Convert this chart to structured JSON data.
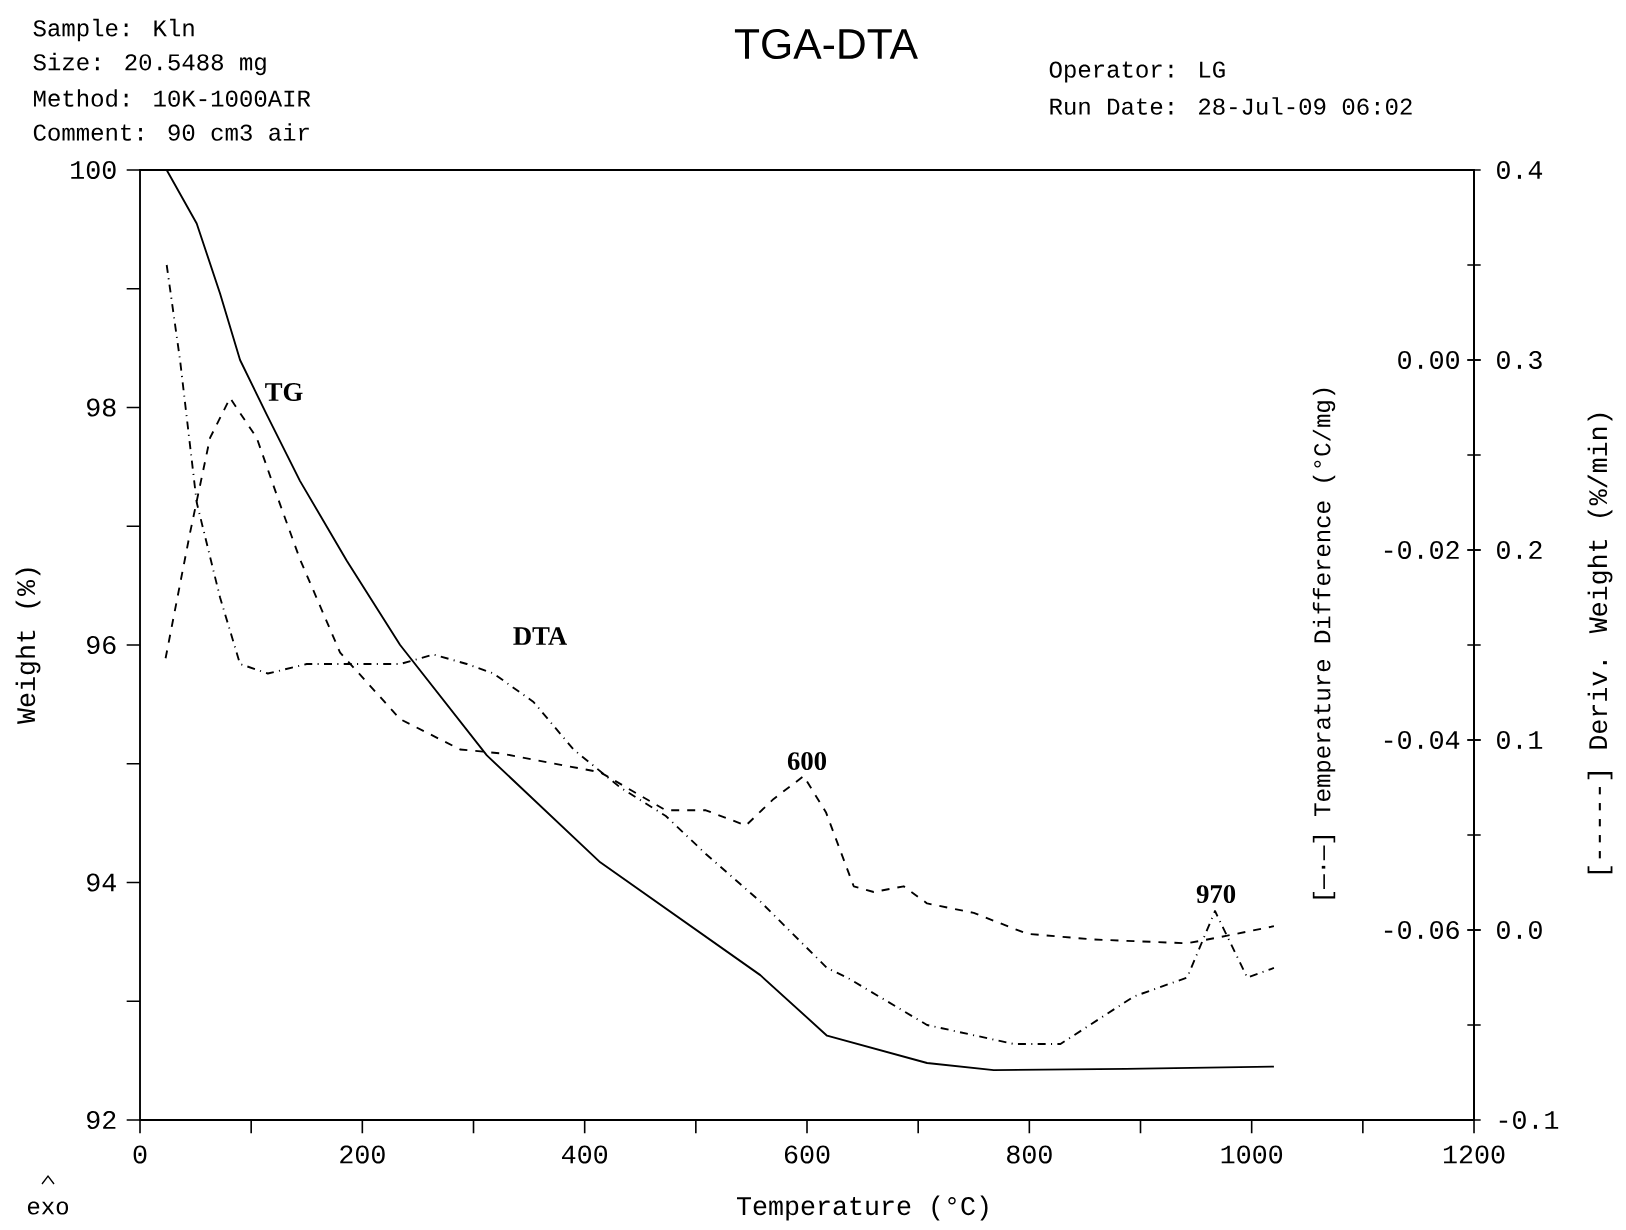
{
  "chart_data": {
    "type": "line",
    "title": "TGA-DTA",
    "xlabel": "Temperature (°C)",
    "ylabel": "Weight (%)",
    "y2label": "[-----] Deriv. Weight (%/min)",
    "y3label": "[—·—] Temperature Difference (°C/mg)",
    "annotations": [
      "Sample: Kln",
      "Size:    20.5488 mg",
      "Method: 10K-1000AIR",
      "Comment: 90 cm3 air",
      "Operator: LG",
      "Run Date: 28-Jul-09 06:02",
      "exo",
      "TG",
      "DTA",
      {
        "text": "600",
        "x": 600,
        "y": 94.92
      },
      {
        "text": "970",
        "x": 968,
        "y": 93.8
      }
    ],
    "xlim": [
      0,
      1200
    ],
    "xticks": [
      0,
      {
        "value": 100,
        "label": null
      },
      200,
      {
        "value": 300,
        "label": null
      },
      400,
      {
        "value": 500,
        "label": null
      },
      600,
      {
        "value": 700,
        "label": null
      },
      800,
      {
        "value": 900,
        "label": null
      },
      1000,
      {
        "value": 1100,
        "label": null
      },
      1200
    ],
    "ylim": [
      92,
      100
    ],
    "yticks": [
      92,
      {
        "value": 93,
        "label": null
      },
      94,
      {
        "value": 95,
        "label": null
      },
      96,
      {
        "value": 97,
        "label": null
      },
      98,
      {
        "value": 99,
        "label": null
      },
      100
    ],
    "y2lim": [
      -0.1,
      0.4
    ],
    "y2ticks": [
      {
        "value": -0.1,
        "label": "-0.1"
      },
      {
        "value": -0.05,
        "label": null
      },
      {
        "value": 0.0,
        "label": "0.0"
      },
      {
        "value": 0.05,
        "label": null
      },
      {
        "value": 0.1,
        "label": "0.1"
      },
      {
        "value": 0.15,
        "label": null
      },
      {
        "value": 0.2,
        "label": "0.2"
      },
      {
        "value": 0.25,
        "label": null
      },
      {
        "value": 0.3,
        "label": "0.3"
      },
      {
        "value": 0.35,
        "label": null
      },
      {
        "value": 0.4,
        "label": "0.4"
      }
    ],
    "y3lim": [
      -0.08,
      0.02
    ],
    "y3ticks": [
      {
        "value": -0.06,
        "label": "-0.06"
      },
      {
        "value": -0.04,
        "label": "-0.04"
      },
      {
        "value": -0.02,
        "label": "-0.02"
      },
      {
        "value": 0.0,
        "label": "0.00"
      }
    ],
    "marker": "none",
    "series": [
      {
        "color": "#000000",
        "line_style": "solid",
        "x": [
          24,
          51,
          72,
          90,
          114,
          144,
          186,
          234,
          312,
          414,
          558,
          618,
          708,
          768,
          887,
          1020
        ],
        "values": [
          100,
          99.55,
          98.96,
          98.4,
          97.94,
          97.38,
          96.71,
          96.0,
          95.07,
          94.17,
          93.22,
          92.71,
          92.48,
          92.42,
          92.43,
          92.45
        ]
      },
      {
        "color": "#000000",
        "line_style": "dashed",
        "axis": "y2",
        "x": [
          23,
          45,
          63,
          81,
          105,
          126,
          144,
          180,
          234,
          288,
          324,
          414,
          473,
          509,
          545,
          570,
          597,
          617,
          642,
          660,
          687,
          708,
          750,
          798,
          858,
          942,
          978,
          1020
        ],
        "values": [
          0.143,
          0.209,
          0.259,
          0.28,
          0.259,
          0.224,
          0.195,
          0.146,
          0.111,
          0.095,
          0.093,
          0.083,
          0.063,
          0.063,
          0.055,
          0.069,
          0.081,
          0.062,
          0.023,
          0.02,
          0.023,
          0.014,
          0.009,
          -0.002,
          -0.005,
          -0.007,
          -0.003,
          0.002
        ]
      },
      {
        "color": "#000000",
        "line_style": "dashdot",
        "axis": "y3",
        "x": [
          24,
          36,
          51,
          72,
          90,
          115,
          150,
          234,
          264,
          294,
          318,
          354,
          390,
          432,
          473,
          509,
          558,
          618,
          636,
          708,
          786,
          828,
          894,
          942,
          967,
          996,
          1020
        ],
        "values": [
          0.01,
          0.0,
          -0.015,
          -0.025,
          -0.032,
          -0.033,
          -0.032,
          -0.032,
          -0.031,
          -0.032,
          -0.033,
          -0.036,
          -0.041,
          -0.045,
          -0.048,
          -0.052,
          -0.057,
          -0.064,
          -0.065,
          -0.07,
          -0.072,
          -0.072,
          -0.067,
          -0.065,
          -0.058,
          -0.065,
          -0.064
        ]
      }
    ]
  }
}
